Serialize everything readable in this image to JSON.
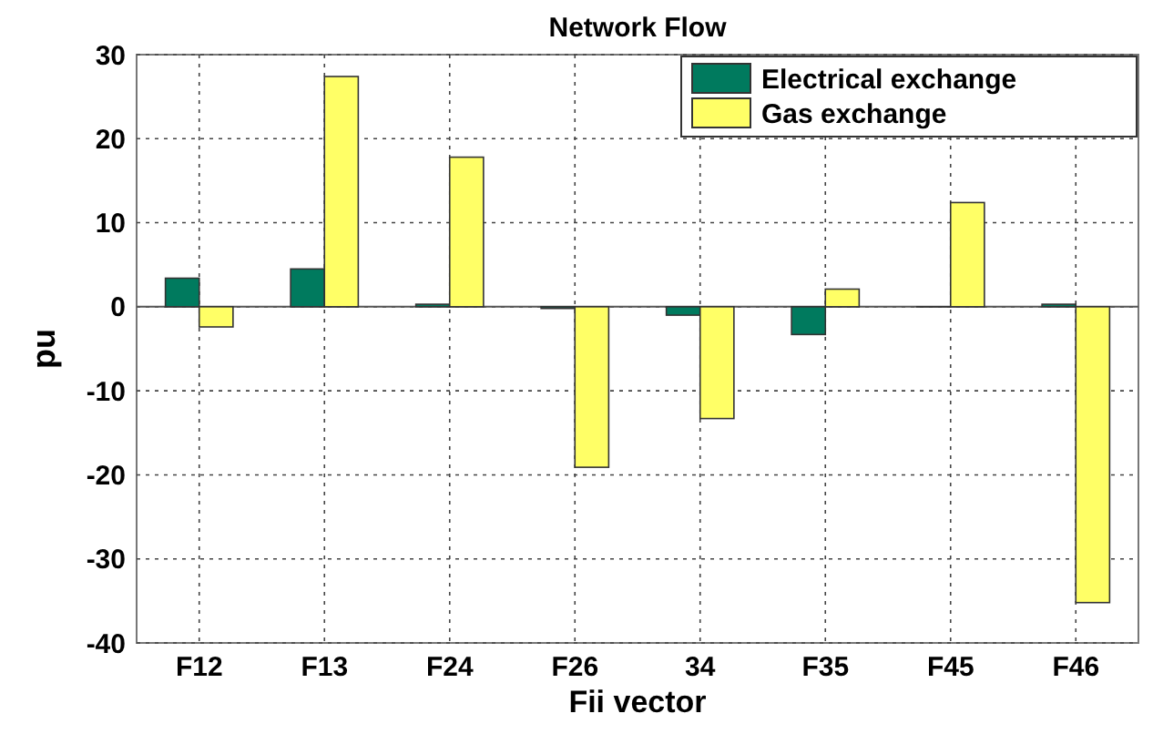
{
  "chart_data": {
    "type": "bar",
    "title": "Network Flow",
    "xlabel": "Fii vector",
    "ylabel": "pu",
    "categories": [
      "F12",
      "F13",
      "F24",
      "F26",
      "34",
      "F35",
      "F45",
      "F46"
    ],
    "series": [
      {
        "name": "Electrical exchange",
        "color": "#007a5e",
        "values": [
          3.4,
          4.5,
          0.3,
          -0.2,
          -1.0,
          -3.3,
          0,
          0.3
        ]
      },
      {
        "name": "Gas exchange",
        "color": "#ffff66",
        "values": [
          -2.4,
          27.4,
          17.8,
          -19.1,
          -13.3,
          2.1,
          12.4,
          -35.2
        ]
      }
    ],
    "ylim": [
      -40,
      30
    ],
    "yticks": [
      -40,
      -30,
      -20,
      -10,
      0,
      10,
      20,
      30
    ],
    "grid": true,
    "legend": "top right"
  }
}
